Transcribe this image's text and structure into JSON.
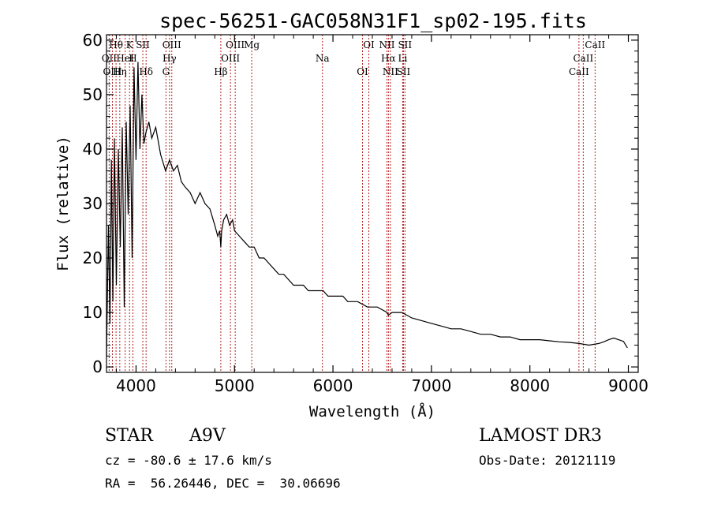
{
  "chart_data": {
    "type": "line",
    "title": "spec-56251-GAC058N31F1_sp02-195.fits",
    "xlabel": "Wavelength (Å)",
    "ylabel": "Flux (relative)",
    "xlim": [
      3700,
      9100
    ],
    "ylim": [
      -1,
      61
    ],
    "xticks": [
      4000,
      5000,
      6000,
      7000,
      8000,
      9000
    ],
    "yticks": [
      0,
      10,
      20,
      30,
      40,
      50,
      60
    ],
    "colors": {
      "spectrum": "#000000",
      "lines": "#b22222",
      "axes": "#000000"
    },
    "spectrum": {
      "name": "Flux",
      "x": [
        3700,
        3720,
        3735,
        3750,
        3765,
        3780,
        3800,
        3820,
        3840,
        3860,
        3880,
        3900,
        3920,
        3940,
        3960,
        3980,
        4000,
        4020,
        4040,
        4060,
        4080,
        4100,
        4130,
        4160,
        4200,
        4250,
        4300,
        4340,
        4380,
        4420,
        4460,
        4500,
        4550,
        4600,
        4650,
        4700,
        4750,
        4800,
        4830,
        4850,
        4861,
        4870,
        4890,
        4920,
        4950,
        4980,
        5000,
        5050,
        5100,
        5150,
        5200,
        5250,
        5300,
        5350,
        5400,
        5450,
        5500,
        5550,
        5600,
        5650,
        5700,
        5750,
        5800,
        5850,
        5900,
        5950,
        6000,
        6050,
        6100,
        6150,
        6200,
        6250,
        6300,
        6350,
        6400,
        6450,
        6500,
        6550,
        6563,
        6600,
        6650,
        6700,
        6750,
        6800,
        6900,
        7000,
        7100,
        7200,
        7300,
        7400,
        7500,
        7600,
        7700,
        7800,
        7900,
        8000,
        8100,
        8200,
        8300,
        8400,
        8500,
        8600,
        8700,
        8750,
        8800,
        8850,
        8900,
        8950,
        8990
      ],
      "y": [
        2,
        26,
        8,
        38,
        12,
        42,
        15,
        40,
        22,
        44,
        11,
        45,
        28,
        48,
        20,
        55,
        38,
        56,
        40,
        50,
        41,
        43,
        45,
        42,
        44,
        39,
        36,
        38,
        36,
        37,
        34,
        33,
        32,
        30,
        32,
        30,
        29,
        26,
        24,
        25,
        22,
        25,
        27,
        28,
        26,
        27,
        25,
        24,
        23,
        22,
        22,
        20,
        20,
        19,
        18,
        17,
        17,
        16,
        15,
        15,
        15,
        14,
        14,
        14,
        14,
        13,
        13,
        13,
        13,
        12,
        12,
        12,
        11.5,
        11,
        11,
        11,
        10.5,
        10,
        9.5,
        10,
        10,
        10,
        9.5,
        9,
        8.5,
        8,
        7.5,
        7,
        7,
        6.5,
        6,
        6,
        5.5,
        5.5,
        5,
        5,
        5,
        4.8,
        4.6,
        4.5,
        4.3,
        4,
        4.3,
        4.6,
        5,
        5.3,
        5,
        4.7,
        3.5
      ]
    },
    "lines": [
      {
        "name": "Hθ",
        "wavelength": 3797
      },
      {
        "name": "OII",
        "wavelength": 3727
      },
      {
        "name": "OIII",
        "wavelength": 3760
      },
      {
        "name": "K",
        "wavelength": 3934
      },
      {
        "name": "HeI",
        "wavelength": 3889
      },
      {
        "name": "Hη",
        "wavelength": 3835
      },
      {
        "name": "SII",
        "wavelength": 4069
      },
      {
        "name": "H",
        "wavelength": 3968
      },
      {
        "name": "Hδ",
        "wavelength": 4102
      },
      {
        "name": "OIII",
        "wavelength": 4363
      },
      {
        "name": "Hγ",
        "wavelength": 4340
      },
      {
        "name": "G",
        "wavelength": 4304
      },
      {
        "name": "OIII",
        "wavelength": 5007
      },
      {
        "name": "OIII",
        "wavelength": 4959
      },
      {
        "name": "Hβ",
        "wavelength": 4861
      },
      {
        "name": "Mg",
        "wavelength": 5175
      },
      {
        "name": "Na",
        "wavelength": 5893
      },
      {
        "name": "OI",
        "wavelength": 6300
      },
      {
        "name": "OI",
        "wavelength": 6364
      },
      {
        "name": "Hα",
        "wavelength": 6563
      },
      {
        "name": "SII",
        "wavelength": 6716
      },
      {
        "name": "NII",
        "wavelength": 6548
      },
      {
        "name": "Li",
        "wavelength": 6708
      },
      {
        "name": "NII",
        "wavelength": 6583
      },
      {
        "name": "SII",
        "wavelength": 6731
      },
      {
        "name": "CaII",
        "wavelength": 8542
      },
      {
        "name": "CaII",
        "wavelength": 8498
      },
      {
        "name": "CaII",
        "wavelength": 8662
      }
    ]
  },
  "info": {
    "class_label": "STAR",
    "subclass": "A9V",
    "survey": "LAMOST DR3",
    "redshift": "cz = -80.6 ± 17.6 km/s",
    "obs_date": "Obs-Date: 20121119",
    "coords": "RA =  56.26446, DEC =  30.06696"
  }
}
